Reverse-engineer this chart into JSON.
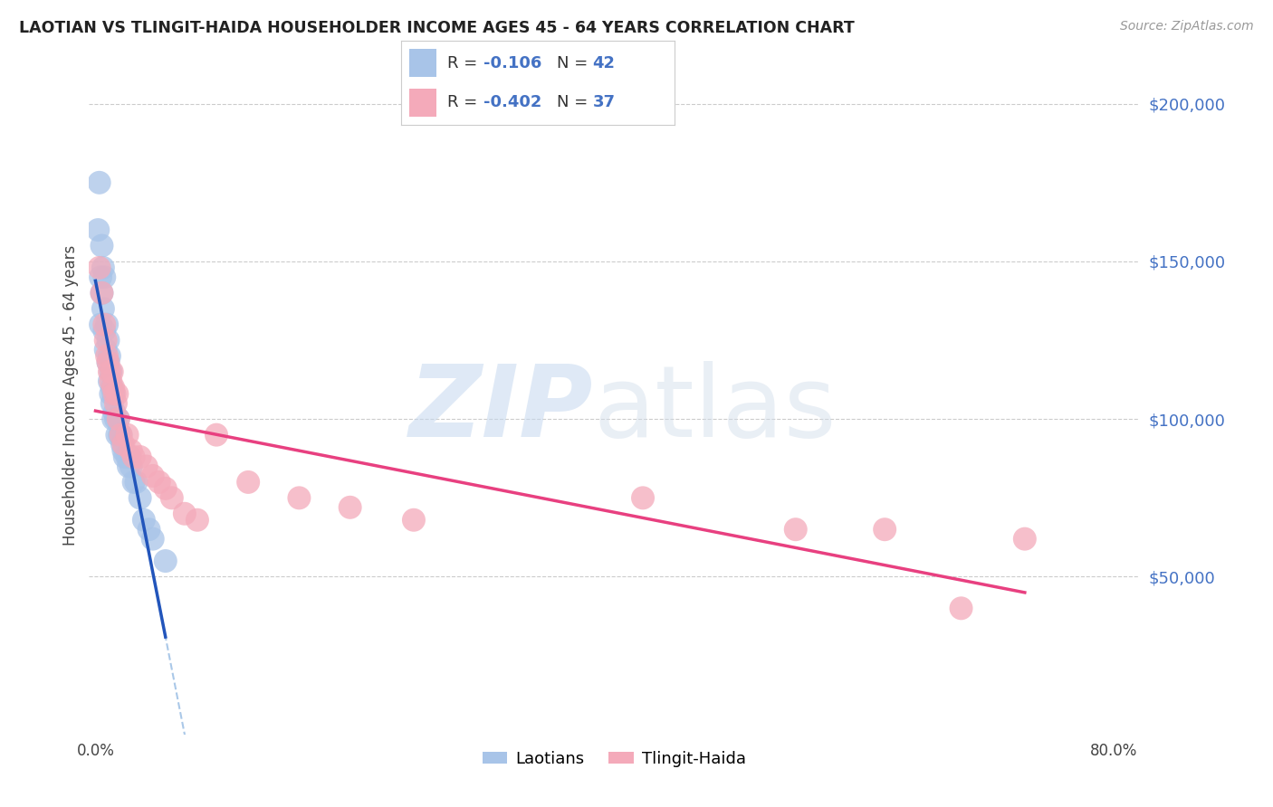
{
  "title": "LAOTIAN VS TLINGIT-HAIDA HOUSEHOLDER INCOME AGES 45 - 64 YEARS CORRELATION CHART",
  "source": "Source: ZipAtlas.com",
  "ylabel": "Householder Income Ages 45 - 64 years",
  "xlim": [
    -0.005,
    0.82
  ],
  "ylim": [
    0,
    215000
  ],
  "yticks": [
    0,
    50000,
    100000,
    150000,
    200000
  ],
  "ytick_labels": [
    "",
    "$50,000",
    "$100,000",
    "$150,000",
    "$200,000"
  ],
  "laotian_color": "#a8c4e8",
  "tlingit_color": "#f4aaba",
  "laotian_line_color": "#2255bb",
  "tlingit_line_color": "#e84080",
  "dashed_color": "#aac8e8",
  "laotian_R": -0.106,
  "laotian_N": 42,
  "tlingit_R": -0.402,
  "tlingit_N": 37,
  "background_color": "#ffffff",
  "grid_color": "#cccccc",
  "laotian_x": [
    0.002,
    0.003,
    0.004,
    0.004,
    0.005,
    0.005,
    0.006,
    0.006,
    0.007,
    0.007,
    0.008,
    0.009,
    0.01,
    0.01,
    0.011,
    0.011,
    0.012,
    0.012,
    0.013,
    0.013,
    0.014,
    0.014,
    0.015,
    0.016,
    0.017,
    0.018,
    0.019,
    0.02,
    0.021,
    0.022,
    0.023,
    0.025,
    0.026,
    0.027,
    0.028,
    0.03,
    0.032,
    0.035,
    0.038,
    0.042,
    0.045,
    0.055
  ],
  "laotian_y": [
    160000,
    175000,
    145000,
    130000,
    155000,
    140000,
    148000,
    135000,
    145000,
    128000,
    122000,
    130000,
    125000,
    118000,
    120000,
    112000,
    115000,
    108000,
    110000,
    105000,
    108000,
    100000,
    102000,
    100000,
    95000,
    100000,
    95000,
    95000,
    92000,
    90000,
    88000,
    88000,
    85000,
    88000,
    85000,
    80000,
    80000,
    75000,
    68000,
    65000,
    62000,
    55000
  ],
  "tlingit_x": [
    0.003,
    0.005,
    0.007,
    0.008,
    0.009,
    0.01,
    0.011,
    0.012,
    0.013,
    0.014,
    0.015,
    0.016,
    0.017,
    0.018,
    0.02,
    0.022,
    0.025,
    0.028,
    0.03,
    0.035,
    0.04,
    0.045,
    0.05,
    0.055,
    0.06,
    0.07,
    0.08,
    0.095,
    0.12,
    0.16,
    0.2,
    0.25,
    0.43,
    0.55,
    0.62,
    0.68,
    0.73
  ],
  "tlingit_y": [
    148000,
    140000,
    130000,
    125000,
    120000,
    118000,
    115000,
    112000,
    115000,
    110000,
    108000,
    105000,
    108000,
    100000,
    95000,
    92000,
    95000,
    90000,
    88000,
    88000,
    85000,
    82000,
    80000,
    78000,
    75000,
    70000,
    68000,
    95000,
    80000,
    75000,
    72000,
    68000,
    75000,
    65000,
    65000,
    40000,
    62000
  ]
}
